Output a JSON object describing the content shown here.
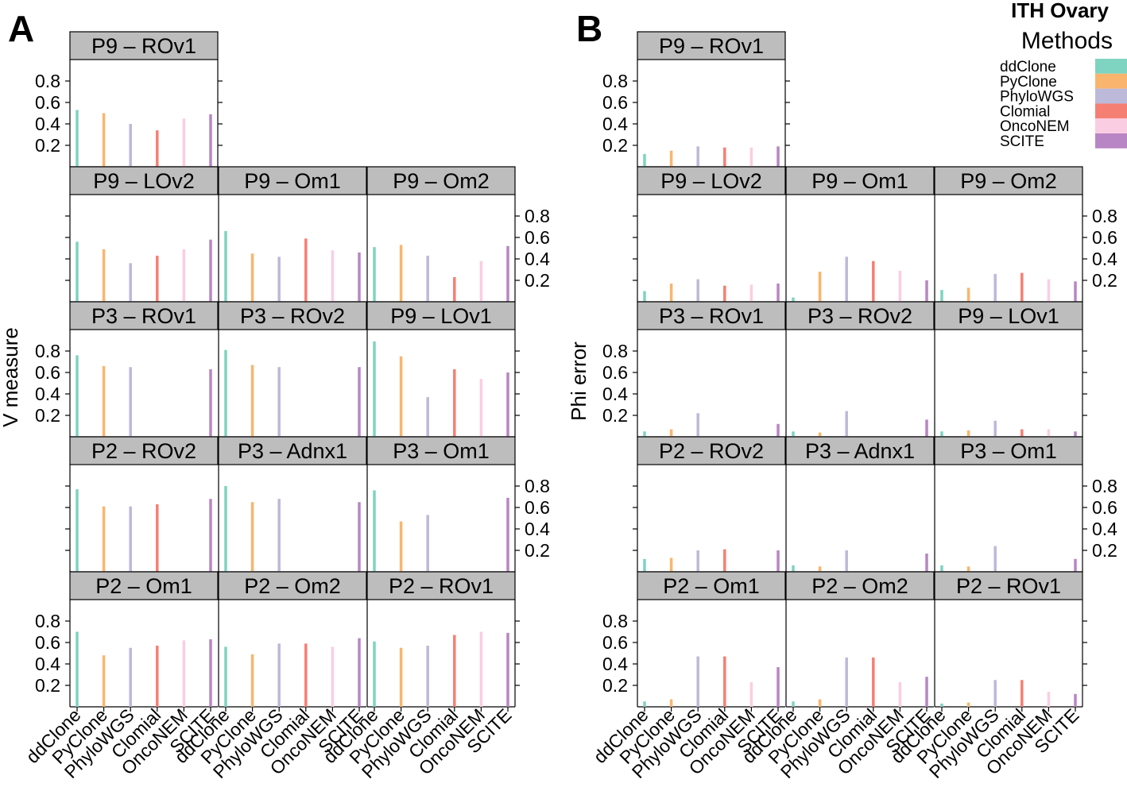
{
  "figure_title": "ITH Ovary",
  "legend": {
    "title": "Methods",
    "items": [
      {
        "name": "ddClone",
        "color": "#7fd3c1"
      },
      {
        "name": "PyClone",
        "color": "#f9b56d"
      },
      {
        "name": "PhyloWGS",
        "color": "#bcb9da"
      },
      {
        "name": "Clomial",
        "color": "#f57f73"
      },
      {
        "name": "OncoNEM",
        "color": "#fbcde2"
      },
      {
        "name": "SCITE",
        "color": "#b886c4"
      }
    ]
  },
  "chart_data": [
    {
      "panel": "A",
      "type": "bar",
      "ylabel": "V measure",
      "ylim": [
        0,
        1.0
      ],
      "yticks": [
        0.2,
        0.4,
        0.6,
        0.8
      ],
      "ytick_labels": [
        "0.2",
        "0.4",
        "0.6",
        "0.8"
      ],
      "categories": [
        "ddClone",
        "PyClone",
        "PhyloWGS",
        "Clomial",
        "OncoNEM",
        "SCITE"
      ],
      "facets": [
        {
          "title": "P9 – ROv1",
          "row": 0,
          "col": 0,
          "values": [
            0.53,
            0.5,
            0.4,
            0.34,
            0.45,
            0.49
          ]
        },
        {
          "title": "P9 – LOv2",
          "row": 1,
          "col": 0,
          "values": [
            0.56,
            0.49,
            0.36,
            0.43,
            0.49,
            0.58
          ]
        },
        {
          "title": "P9 – Om1",
          "row": 1,
          "col": 1,
          "values": [
            0.66,
            0.45,
            0.42,
            0.59,
            0.48,
            0.46
          ]
        },
        {
          "title": "P9 – Om2",
          "row": 1,
          "col": 2,
          "values": [
            0.51,
            0.53,
            0.43,
            0.23,
            0.38,
            0.52
          ]
        },
        {
          "title": "P3 – ROv1",
          "row": 2,
          "col": 0,
          "values": [
            0.76,
            0.66,
            0.65,
            null,
            null,
            0.63
          ]
        },
        {
          "title": "P3 – ROv2",
          "row": 2,
          "col": 1,
          "values": [
            0.81,
            0.67,
            0.65,
            null,
            null,
            0.65
          ]
        },
        {
          "title": "P9 – LOv1",
          "row": 2,
          "col": 2,
          "values": [
            0.89,
            0.75,
            0.37,
            0.63,
            0.54,
            0.6
          ]
        },
        {
          "title": "P2 – ROv2",
          "row": 3,
          "col": 0,
          "values": [
            0.77,
            0.61,
            0.61,
            0.63,
            null,
            0.68
          ]
        },
        {
          "title": "P3 – Adnx1",
          "row": 3,
          "col": 1,
          "values": [
            0.8,
            0.65,
            0.68,
            null,
            null,
            0.65
          ]
        },
        {
          "title": "P3 – Om1",
          "row": 3,
          "col": 2,
          "values": [
            0.76,
            0.47,
            0.53,
            null,
            null,
            0.69
          ]
        },
        {
          "title": "P2 – Om1",
          "row": 4,
          "col": 0,
          "values": [
            0.7,
            0.48,
            0.55,
            0.57,
            0.62,
            0.63
          ]
        },
        {
          "title": "P2 – Om2",
          "row": 4,
          "col": 1,
          "values": [
            0.56,
            0.49,
            0.59,
            0.59,
            0.56,
            0.64
          ]
        },
        {
          "title": "P2 – ROv1",
          "row": 4,
          "col": 2,
          "values": [
            0.61,
            0.55,
            0.57,
            0.67,
            0.7,
            0.69
          ]
        }
      ]
    },
    {
      "panel": "B",
      "type": "bar",
      "ylabel": "Phi error",
      "ylim": [
        0,
        1.0
      ],
      "yticks": [
        0.2,
        0.4,
        0.6,
        0.8
      ],
      "ytick_labels": [
        "0.2",
        "0.4",
        "0.6",
        "0.8"
      ],
      "categories": [
        "ddClone",
        "PyClone",
        "PhyloWGS",
        "Clomial",
        "OncoNEM",
        "SCITE"
      ],
      "facets": [
        {
          "title": "P9 – ROv1",
          "row": 0,
          "col": 0,
          "values": [
            0.12,
            0.15,
            0.19,
            0.18,
            0.18,
            0.19
          ]
        },
        {
          "title": "P9 – LOv2",
          "row": 1,
          "col": 0,
          "values": [
            0.1,
            0.17,
            0.21,
            0.15,
            0.16,
            0.17
          ]
        },
        {
          "title": "P9 – Om1",
          "row": 1,
          "col": 1,
          "values": [
            0.04,
            0.28,
            0.42,
            0.38,
            0.29,
            0.2
          ]
        },
        {
          "title": "P9 – Om2",
          "row": 1,
          "col": 2,
          "values": [
            0.11,
            0.13,
            0.26,
            0.27,
            0.21,
            0.19
          ]
        },
        {
          "title": "P3 – ROv1",
          "row": 2,
          "col": 0,
          "values": [
            0.05,
            0.07,
            0.22,
            null,
            null,
            0.12
          ]
        },
        {
          "title": "P3 – ROv2",
          "row": 2,
          "col": 1,
          "values": [
            0.05,
            0.04,
            0.24,
            null,
            null,
            0.16
          ]
        },
        {
          "title": "P9 – LOv1",
          "row": 2,
          "col": 2,
          "values": [
            0.05,
            0.06,
            0.15,
            0.07,
            0.07,
            0.05
          ]
        },
        {
          "title": "P2 – ROv2",
          "row": 3,
          "col": 0,
          "values": [
            0.12,
            0.13,
            0.2,
            0.21,
            null,
            0.2
          ]
        },
        {
          "title": "P3 – Adnx1",
          "row": 3,
          "col": 1,
          "values": [
            0.06,
            0.05,
            0.2,
            null,
            null,
            0.17
          ]
        },
        {
          "title": "P3 – Om1",
          "row": 3,
          "col": 2,
          "values": [
            0.06,
            0.05,
            0.24,
            null,
            null,
            0.12
          ]
        },
        {
          "title": "P2 – Om1",
          "row": 4,
          "col": 0,
          "values": [
            0.05,
            0.07,
            0.47,
            0.47,
            0.23,
            0.37
          ]
        },
        {
          "title": "P2 – Om2",
          "row": 4,
          "col": 1,
          "values": [
            0.05,
            0.07,
            0.46,
            0.46,
            0.23,
            0.28
          ]
        },
        {
          "title": "P2 – ROv1",
          "row": 4,
          "col": 2,
          "values": [
            0.03,
            0.04,
            0.25,
            0.25,
            0.14,
            0.12
          ]
        }
      ]
    }
  ]
}
